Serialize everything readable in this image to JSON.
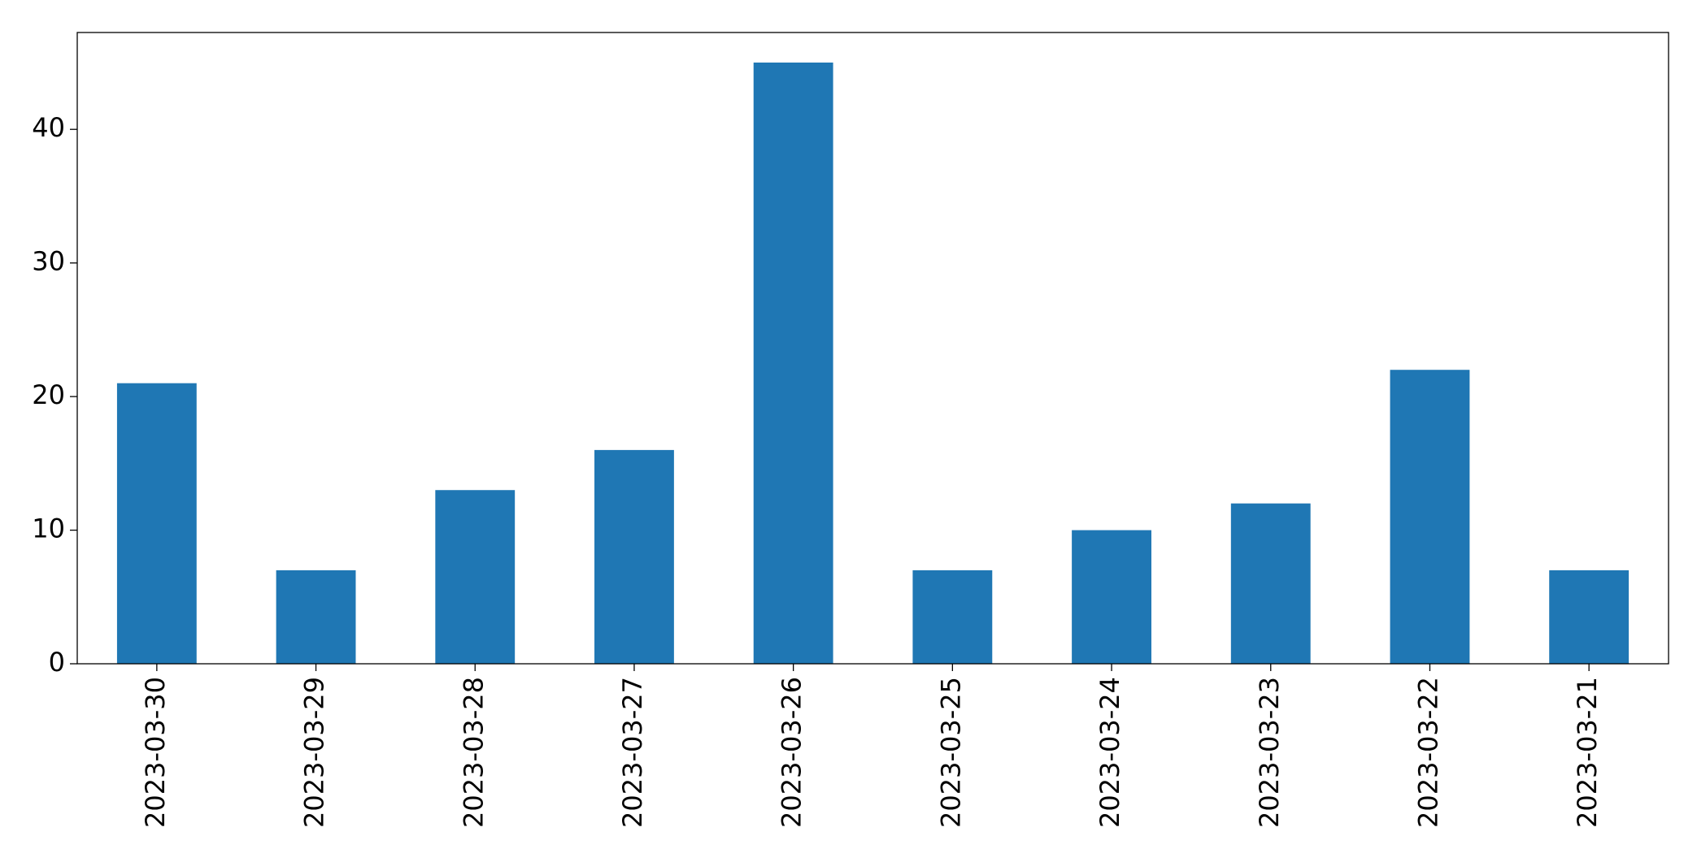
{
  "chart_data": {
    "type": "bar",
    "categories": [
      "2023-03-30",
      "2023-03-29",
      "2023-03-28",
      "2023-03-27",
      "2023-03-26",
      "2023-03-25",
      "2023-03-24",
      "2023-03-23",
      "2023-03-22",
      "2023-03-21"
    ],
    "values": [
      21,
      7,
      13,
      16,
      45,
      7,
      10,
      12,
      22,
      7
    ],
    "color": "#1f77b4",
    "ylim": [
      0,
      47.25
    ],
    "yticks": [
      0,
      10,
      20,
      30,
      40
    ],
    "grid": false
  }
}
